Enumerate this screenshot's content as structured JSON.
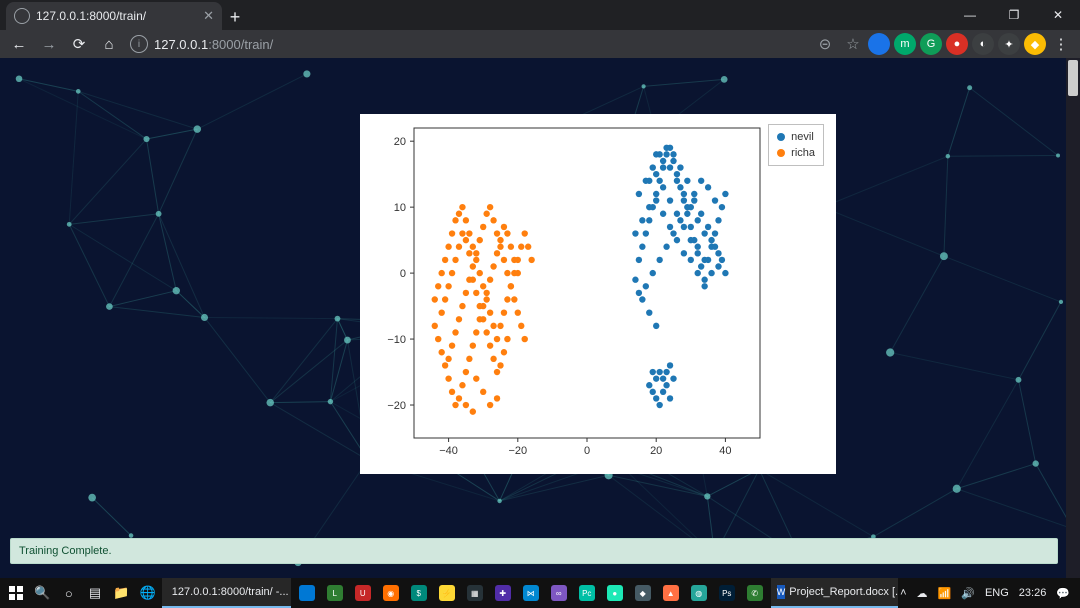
{
  "browser": {
    "tab_title": "127.0.0.1:8000/train/",
    "url_host": "127.0.0.1",
    "url_port_path": ":8000/train/",
    "extensions": [
      {
        "bg": "#1a73e8",
        "glyph": ""
      },
      {
        "bg": "#00a86b",
        "glyph": "m"
      },
      {
        "bg": "#0f9d58",
        "glyph": "G"
      },
      {
        "bg": "#d93025",
        "glyph": "●"
      },
      {
        "bg": "#3c3f41",
        "glyph": "◐"
      },
      {
        "bg": "#3c3f41",
        "glyph": "✦"
      },
      {
        "bg": "#fbbc04",
        "glyph": "◆"
      }
    ]
  },
  "page": {
    "status_text": "Training Complete.",
    "status_bg": "#d1e7dd",
    "status_border": "#badbcc",
    "status_color": "#0f5132",
    "background_color": "#0a1430",
    "network_line_color": "#3fa9a1",
    "network_node_color": "#6fd6cc"
  },
  "chart": {
    "type": "scatter",
    "card_bg": "#ffffff",
    "axes_box_color": "#333333",
    "tick_color": "#333333",
    "tick_fontsize": 11,
    "xlim": [
      -50,
      50
    ],
    "ylim": [
      -25,
      22
    ],
    "xticks": [
      -40,
      -20,
      0,
      20,
      40
    ],
    "yticks": [
      -20,
      -10,
      0,
      10,
      20
    ],
    "marker_radius": 3.2,
    "series": [
      {
        "name": "nevil",
        "color": "#1f77b4",
        "points": [
          [
            14,
            -1
          ],
          [
            15,
            2
          ],
          [
            16,
            4
          ],
          [
            17,
            6
          ],
          [
            18,
            8
          ],
          [
            19,
            10
          ],
          [
            20,
            12
          ],
          [
            21,
            14
          ],
          [
            22,
            16
          ],
          [
            23,
            18
          ],
          [
            24,
            19
          ],
          [
            25,
            17
          ],
          [
            26,
            15
          ],
          [
            27,
            13
          ],
          [
            28,
            11
          ],
          [
            29,
            9
          ],
          [
            30,
            7
          ],
          [
            31,
            5
          ],
          [
            32,
            3
          ],
          [
            33,
            1
          ],
          [
            34,
            -1
          ],
          [
            35,
            2
          ],
          [
            36,
            4
          ],
          [
            37,
            6
          ],
          [
            38,
            8
          ],
          [
            39,
            10
          ],
          [
            40,
            12
          ],
          [
            15,
            -3
          ],
          [
            17,
            -2
          ],
          [
            19,
            0
          ],
          [
            21,
            2
          ],
          [
            23,
            4
          ],
          [
            25,
            6
          ],
          [
            27,
            8
          ],
          [
            29,
            10
          ],
          [
            31,
            12
          ],
          [
            33,
            14
          ],
          [
            35,
            13
          ],
          [
            37,
            11
          ],
          [
            20,
            18
          ],
          [
            22,
            17
          ],
          [
            24,
            16
          ],
          [
            26,
            14
          ],
          [
            28,
            12
          ],
          [
            30,
            10
          ],
          [
            32,
            8
          ],
          [
            34,
            6
          ],
          [
            36,
            5
          ],
          [
            38,
            3
          ],
          [
            18,
            14
          ],
          [
            20,
            15
          ],
          [
            22,
            13
          ],
          [
            24,
            11
          ],
          [
            26,
            9
          ],
          [
            28,
            7
          ],
          [
            30,
            5
          ],
          [
            32,
            4
          ],
          [
            34,
            2
          ],
          [
            14,
            6
          ],
          [
            16,
            8
          ],
          [
            18,
            10
          ],
          [
            20,
            11
          ],
          [
            22,
            9
          ],
          [
            24,
            7
          ],
          [
            26,
            5
          ],
          [
            28,
            3
          ],
          [
            30,
            2
          ],
          [
            32,
            0
          ],
          [
            34,
            -2
          ],
          [
            36,
            0
          ],
          [
            38,
            1
          ],
          [
            40,
            0
          ],
          [
            15,
            12
          ],
          [
            17,
            14
          ],
          [
            19,
            16
          ],
          [
            21,
            18
          ],
          [
            23,
            19
          ],
          [
            25,
            18
          ],
          [
            27,
            16
          ],
          [
            29,
            14
          ],
          [
            31,
            11
          ],
          [
            33,
            9
          ],
          [
            35,
            7
          ],
          [
            37,
            4
          ],
          [
            39,
            2
          ],
          [
            16,
            -4
          ],
          [
            18,
            -6
          ],
          [
            20,
            -8
          ],
          [
            19,
            -18
          ],
          [
            20,
            -19
          ],
          [
            21,
            -20
          ],
          [
            22,
            -18
          ],
          [
            23,
            -17
          ],
          [
            24,
            -19
          ],
          [
            22,
            -16
          ],
          [
            21,
            -15
          ],
          [
            20,
            -16
          ],
          [
            23,
            -15
          ],
          [
            24,
            -14
          ],
          [
            19,
            -15
          ],
          [
            18,
            -17
          ],
          [
            25,
            -16
          ]
        ]
      },
      {
        "name": "richa",
        "color": "#ff7f0e",
        "points": [
          [
            -44,
            -4
          ],
          [
            -43,
            -2
          ],
          [
            -42,
            0
          ],
          [
            -41,
            2
          ],
          [
            -40,
            4
          ],
          [
            -39,
            6
          ],
          [
            -38,
            8
          ],
          [
            -37,
            9
          ],
          [
            -36,
            10
          ],
          [
            -35,
            8
          ],
          [
            -34,
            6
          ],
          [
            -33,
            4
          ],
          [
            -32,
            2
          ],
          [
            -31,
            0
          ],
          [
            -30,
            -2
          ],
          [
            -29,
            -4
          ],
          [
            -28,
            -6
          ],
          [
            -27,
            -8
          ],
          [
            -26,
            -10
          ],
          [
            -25,
            -8
          ],
          [
            -24,
            -6
          ],
          [
            -23,
            -4
          ],
          [
            -22,
            -2
          ],
          [
            -21,
            0
          ],
          [
            -20,
            2
          ],
          [
            -19,
            4
          ],
          [
            -18,
            6
          ],
          [
            -17,
            4
          ],
          [
            -16,
            2
          ],
          [
            -44,
            -8
          ],
          [
            -43,
            -10
          ],
          [
            -42,
            -12
          ],
          [
            -41,
            -14
          ],
          [
            -40,
            -13
          ],
          [
            -39,
            -11
          ],
          [
            -38,
            -9
          ],
          [
            -37,
            -7
          ],
          [
            -36,
            -5
          ],
          [
            -35,
            -3
          ],
          [
            -34,
            -1
          ],
          [
            -33,
            1
          ],
          [
            -32,
            3
          ],
          [
            -31,
            5
          ],
          [
            -30,
            7
          ],
          [
            -29,
            9
          ],
          [
            -28,
            10
          ],
          [
            -27,
            8
          ],
          [
            -26,
            6
          ],
          [
            -25,
            4
          ],
          [
            -24,
            2
          ],
          [
            -23,
            0
          ],
          [
            -22,
            -2
          ],
          [
            -21,
            -4
          ],
          [
            -20,
            -6
          ],
          [
            -19,
            -8
          ],
          [
            -18,
            -10
          ],
          [
            -40,
            -16
          ],
          [
            -39,
            -18
          ],
          [
            -38,
            -20
          ],
          [
            -37,
            -19
          ],
          [
            -36,
            -17
          ],
          [
            -35,
            -15
          ],
          [
            -34,
            -13
          ],
          [
            -33,
            -11
          ],
          [
            -32,
            -9
          ],
          [
            -31,
            -7
          ],
          [
            -30,
            -5
          ],
          [
            -29,
            -3
          ],
          [
            -28,
            -1
          ],
          [
            -27,
            1
          ],
          [
            -26,
            3
          ],
          [
            -25,
            5
          ],
          [
            -24,
            7
          ],
          [
            -23,
            6
          ],
          [
            -22,
            4
          ],
          [
            -21,
            2
          ],
          [
            -20,
            0
          ],
          [
            -42,
            -6
          ],
          [
            -41,
            -4
          ],
          [
            -40,
            -2
          ],
          [
            -39,
            0
          ],
          [
            -38,
            2
          ],
          [
            -37,
            4
          ],
          [
            -36,
            6
          ],
          [
            -35,
            5
          ],
          [
            -34,
            3
          ],
          [
            -33,
            -1
          ],
          [
            -32,
            -3
          ],
          [
            -31,
            -5
          ],
          [
            -30,
            -7
          ],
          [
            -29,
            -9
          ],
          [
            -28,
            -11
          ],
          [
            -27,
            -13
          ],
          [
            -26,
            -15
          ],
          [
            -25,
            -14
          ],
          [
            -24,
            -12
          ],
          [
            -23,
            -10
          ],
          [
            -32,
            -16
          ],
          [
            -30,
            -18
          ],
          [
            -28,
            -20
          ],
          [
            -26,
            -19
          ],
          [
            -33,
            -21
          ],
          [
            -35,
            -20
          ]
        ]
      }
    ],
    "legend_border": "#bfbfbf"
  },
  "taskbar": {
    "active_window_1": "127.0.0.1:8000/train/ -...",
    "active_window_2": "Project_Report.docx [...",
    "lang": "ENG",
    "time": "23:26",
    "apps": [
      {
        "bg": "#0078d4",
        "g": ""
      },
      {
        "bg": "#2f7d32",
        "g": "L"
      },
      {
        "bg": "#c62828",
        "g": "U"
      },
      {
        "bg": "#ff6f00",
        "g": "◉"
      },
      {
        "bg": "#00897b",
        "g": "$"
      },
      {
        "bg": "#fdd835",
        "g": "⚡"
      },
      {
        "bg": "#263238",
        "g": "▦"
      },
      {
        "bg": "#512da8",
        "g": "✚"
      },
      {
        "bg": "#0288d1",
        "g": "⋈"
      },
      {
        "bg": "#7e57c2",
        "g": "∞"
      },
      {
        "bg": "#00bfa5",
        "g": "Pc"
      },
      {
        "bg": "#1de9b6",
        "g": "●"
      },
      {
        "bg": "#455a64",
        "g": "◆"
      },
      {
        "bg": "#ff7043",
        "g": "▲"
      },
      {
        "bg": "#26a69a",
        "g": "◍"
      },
      {
        "bg": "#001e36",
        "g": "Ps"
      },
      {
        "bg": "#2e7d32",
        "g": "✆"
      }
    ]
  }
}
